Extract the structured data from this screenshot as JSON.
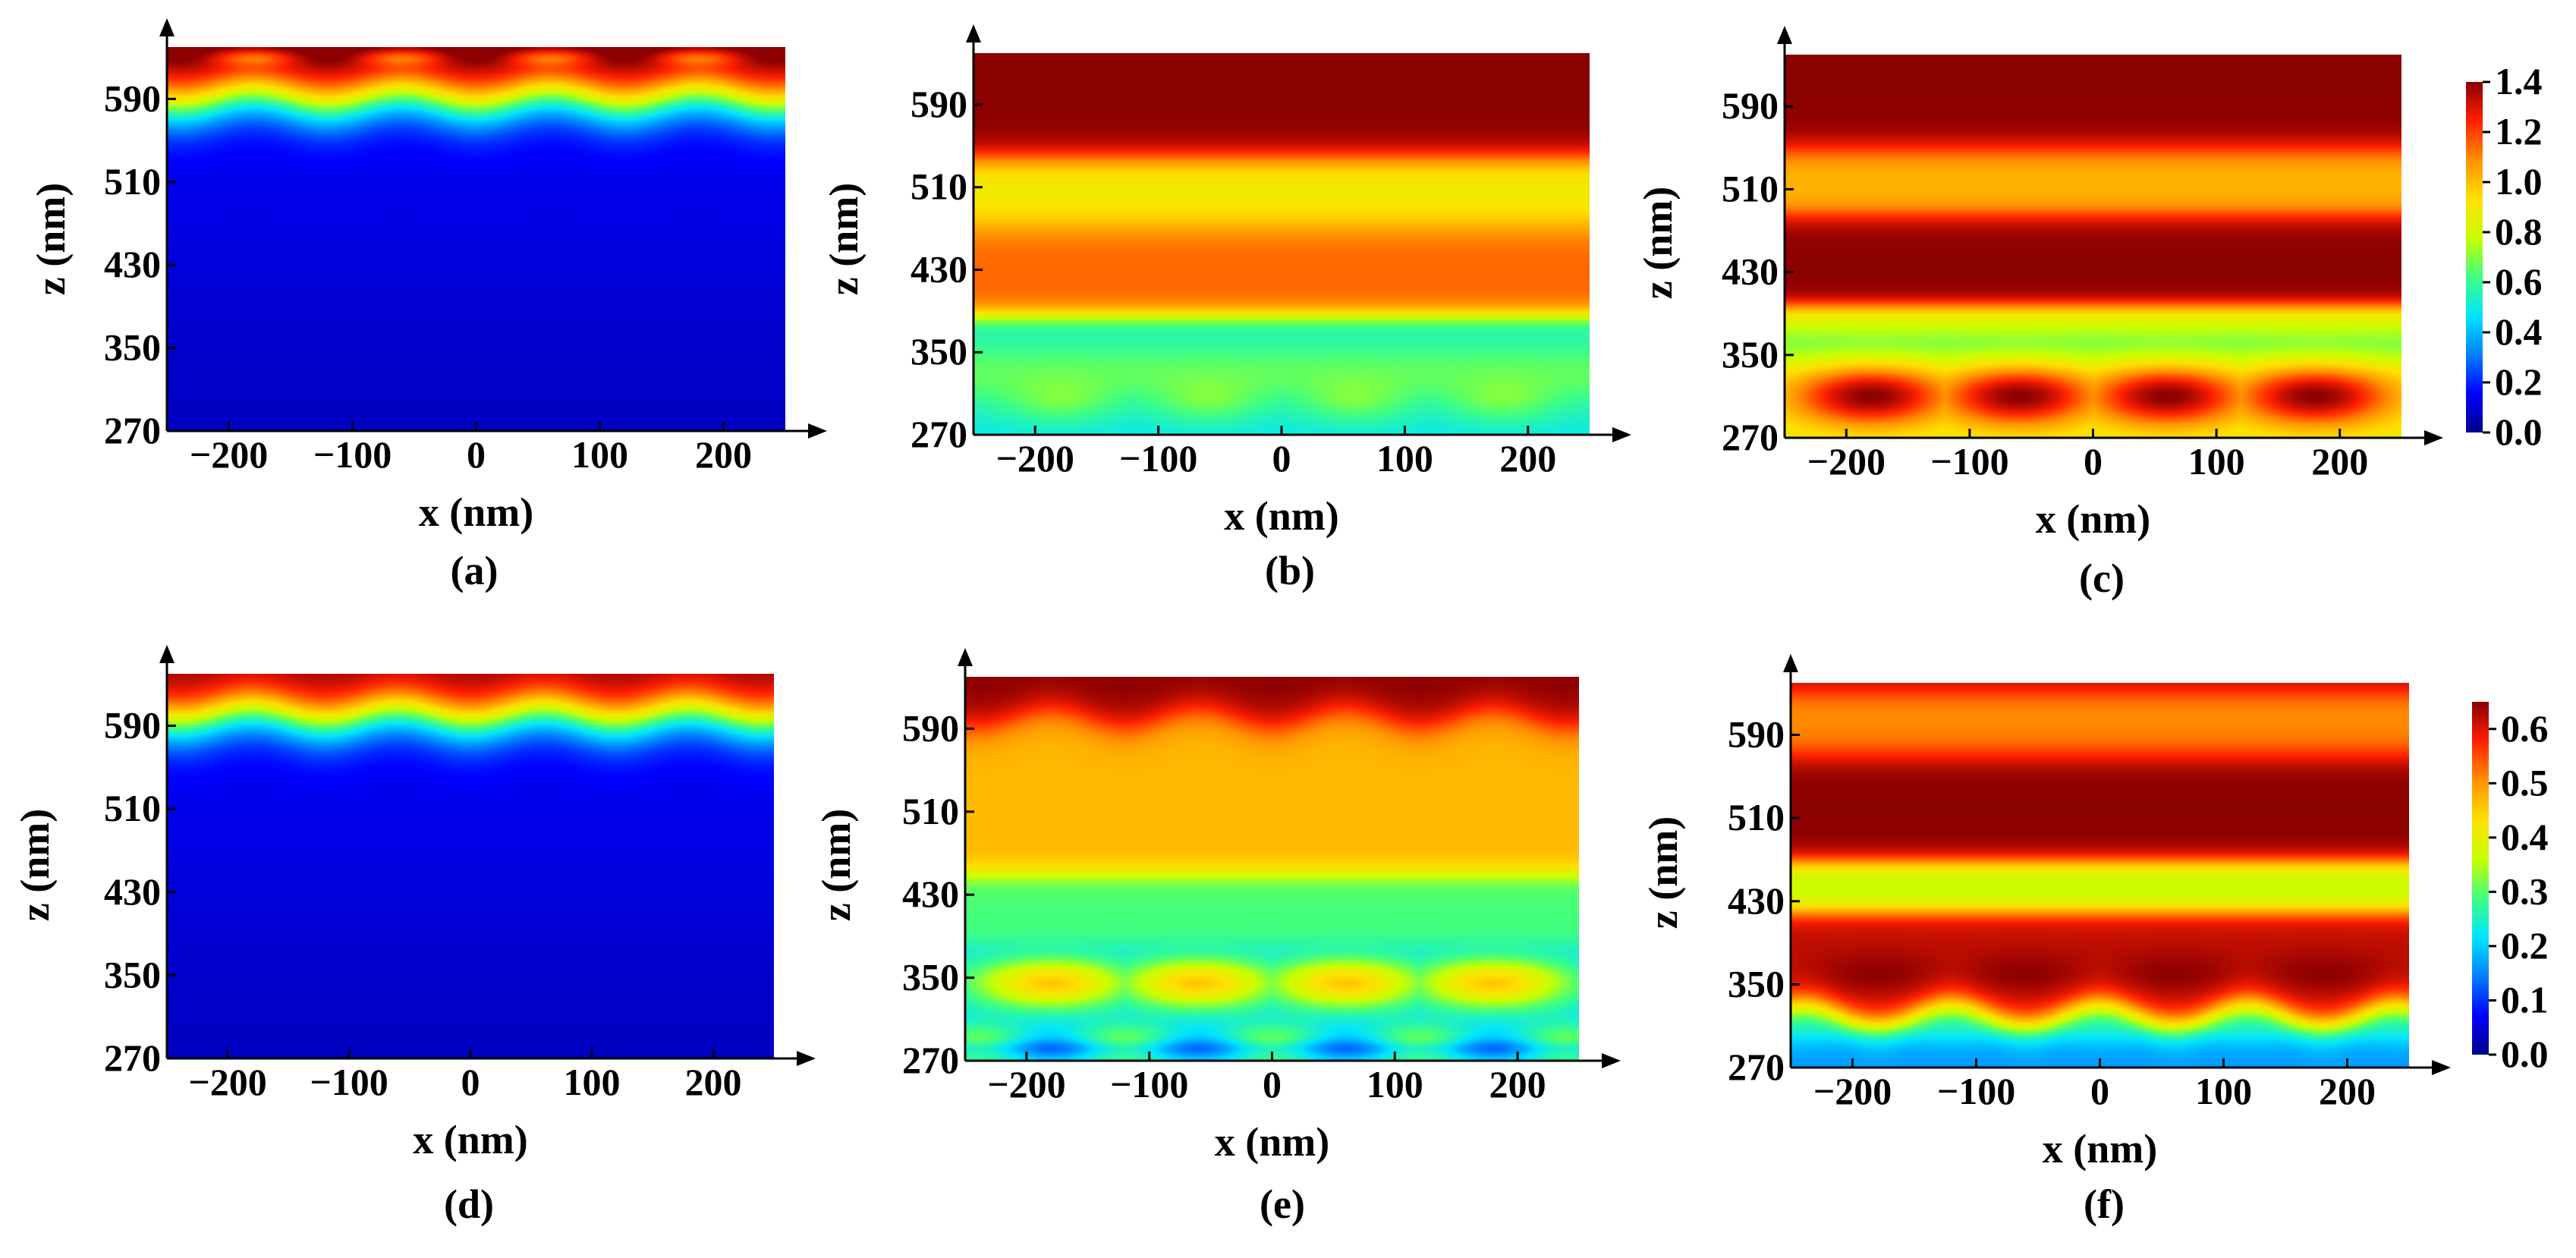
{
  "chart_data": [
    {
      "type": "heatmap",
      "panel_label": "(a)",
      "xlabel": "x (nm)",
      "ylabel": "z (nm)",
      "xlim": [
        -250,
        250
      ],
      "ylim": [
        270,
        640
      ],
      "xticks": [
        -200,
        -100,
        0,
        100,
        200
      ],
      "yticks": [
        270,
        350,
        430,
        510,
        590
      ],
      "field_description": "low intensity (~0.1) in body, rising steeply to >1.4 at top surface with four periodic minima",
      "colorbar": null
    },
    {
      "type": "heatmap",
      "panel_label": "(b)",
      "xlabel": "x (nm)",
      "ylabel": "z (nm)",
      "xlim": [
        -250,
        250
      ],
      "ylim": [
        270,
        640
      ],
      "xticks": [
        -200,
        -100,
        0,
        100,
        200
      ],
      "yticks": [
        270,
        350,
        430,
        510,
        590
      ],
      "field_description": "horizontal bands: ~0.4-0.6 near bottom with four hot spots at x=-180,-60,60,180; ~1.2 at z 380-470; ~0.9 at z 470-535; >1.4 above 540",
      "colorbar": null
    },
    {
      "type": "heatmap",
      "panel_label": "(c)",
      "xlabel": "x (nm)",
      "ylabel": "z (nm)",
      "xlim": [
        -250,
        250
      ],
      "ylim": [
        270,
        640
      ],
      "xticks": [
        -200,
        -100,
        0,
        100,
        200
      ],
      "yticks": [
        270,
        350,
        430,
        510,
        590
      ],
      "field_description": "four strong lobes near z=310 at x=-180,-60,60,180; low band z 340-390; saturated z 400-480; ~1.0 at z 490-540; saturated above 550",
      "colorbar": {
        "min": 0.0,
        "max": 1.4,
        "ticks": [
          "0.0",
          "0.2",
          "0.4",
          "0.6",
          "0.8",
          "1.0",
          "1.2",
          "1.4"
        ]
      }
    },
    {
      "type": "heatmap",
      "panel_label": "(d)",
      "xlabel": "x (nm)",
      "ylabel": "z (nm)",
      "xlim": [
        -250,
        250
      ],
      "ylim": [
        270,
        640
      ],
      "xticks": [
        -200,
        -100,
        0,
        100,
        200
      ],
      "yticks": [
        270,
        350,
        430,
        510,
        590
      ],
      "field_description": "low intensity body, rising to ~0.6 at top surface with periodic undulation",
      "colorbar": null
    },
    {
      "type": "heatmap",
      "panel_label": "(e)",
      "xlabel": "x (nm)",
      "ylabel": "z (nm)",
      "xlim": [
        -250,
        250
      ],
      "ylim": [
        270,
        640
      ],
      "xticks": [
        -200,
        -100,
        0,
        100,
        200
      ],
      "yticks": [
        270,
        350,
        430,
        510,
        590
      ],
      "field_description": "bottom band ~0.2 with lobes ~0.45 near z=340; cyan band z 390-440; ~0.5 band z 450-590; saturated at top with periodic dips",
      "colorbar": null
    },
    {
      "type": "heatmap",
      "panel_label": "(f)",
      "xlabel": "x (nm)",
      "ylabel": "z (nm)",
      "xlim": [
        -250,
        250
      ],
      "ylim": [
        270,
        640
      ],
      "xticks": [
        -200,
        -100,
        0,
        100,
        200
      ],
      "yticks": [
        270,
        350,
        430,
        510,
        590
      ],
      "field_description": "low bottom, saturated lobes near z=360 at four x positions, green band ~0.35 at z 430-460, saturated z 470-560, ~0.5 band near z 600",
      "colorbar": {
        "min": 0.0,
        "max": 0.65,
        "ticks": [
          "0.0",
          "0.1",
          "0.2",
          "0.3",
          "0.4",
          "0.5",
          "0.6"
        ]
      }
    }
  ],
  "colormap": [
    "#00008b",
    "#0000ff",
    "#0080ff",
    "#00e5ff",
    "#40ff80",
    "#c8ff00",
    "#ffe000",
    "#ff9000",
    "#ff2000",
    "#8b0000"
  ]
}
